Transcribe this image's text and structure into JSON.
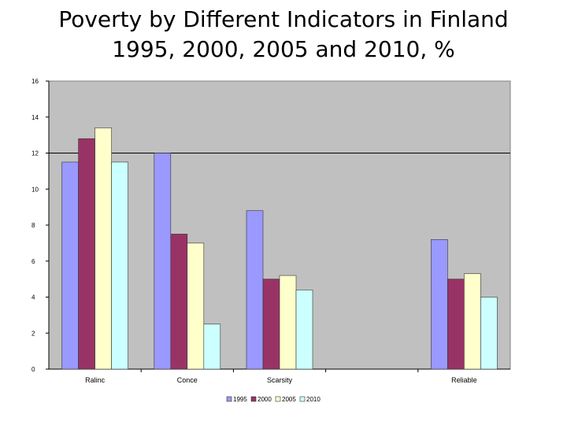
{
  "chart_data": {
    "type": "bar",
    "title": "Poverty by Different Indicators in Finland",
    "subtitle": "1995, 2000, 2005 and 2010, %",
    "xlabel": "",
    "ylabel": "",
    "ylim": [
      0,
      16
    ],
    "yticks": [
      0,
      2,
      4,
      6,
      8,
      10,
      12,
      14,
      16
    ],
    "reference_line": 12,
    "categories": [
      "Ralinc",
      "Conce",
      "Scarsity",
      "",
      "Reliable"
    ],
    "series": [
      {
        "name": "1995",
        "color": "#9999ff",
        "values": [
          11.5,
          12,
          8.8,
          null,
          7.2
        ]
      },
      {
        "name": "2000",
        "color": "#993366",
        "values": [
          12.8,
          7.5,
          5,
          null,
          5
        ]
      },
      {
        "name": "2005",
        "color": "#ffffcc",
        "values": [
          13.4,
          7,
          5.2,
          null,
          5.3
        ]
      },
      {
        "name": "2010",
        "color": "#ccffff",
        "values": [
          11.5,
          2.5,
          4.4,
          null,
          4
        ]
      }
    ],
    "legend": "bottom",
    "plot_background": "#c0c0c0"
  }
}
